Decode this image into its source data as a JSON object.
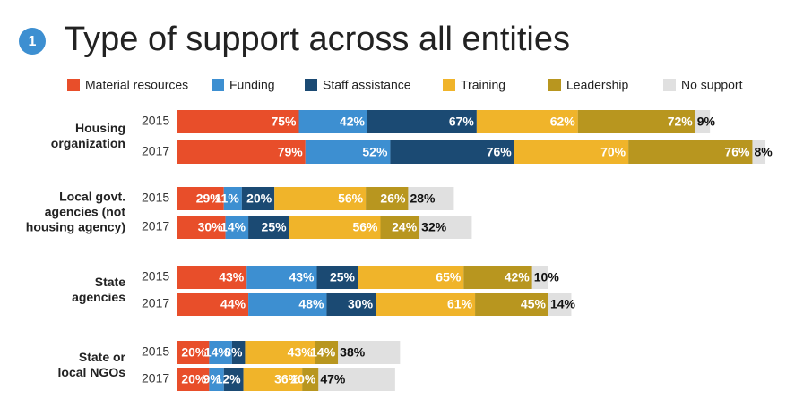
{
  "chart_data": {
    "type": "stacked-bar",
    "number": "1",
    "title": "Type of support across all entities",
    "groups": [
      {
        "label": [
          "Housing",
          "organization"
        ],
        "categories": [
          "2015",
          "2017"
        ]
      },
      {
        "label": [
          "Local govt.",
          "agencies (not",
          "housing agency)"
        ],
        "categories": [
          "2015",
          "2017"
        ]
      },
      {
        "label": [
          "State",
          "agencies"
        ],
        "categories": [
          "2015",
          "2017"
        ]
      },
      {
        "label": [
          "State or",
          "local NGOs"
        ],
        "categories": [
          "2015",
          "2017"
        ]
      }
    ],
    "series": [
      {
        "name": "Material resources",
        "color": "#e84e2a",
        "values": [
          75,
          79,
          29,
          30,
          43,
          44,
          20,
          20
        ],
        "value_labels": [
          "75%",
          "79%",
          "29%",
          "30%",
          "43%",
          "44%",
          "20%",
          "20%"
        ]
      },
      {
        "name": "Funding",
        "color": "#3d8fd1",
        "values": [
          42,
          52,
          11,
          14,
          43,
          48,
          14,
          9
        ],
        "value_labels": [
          "42%",
          "52%",
          "11%",
          "14%",
          "43%",
          "48%",
          "14%",
          "9%"
        ]
      },
      {
        "name": "Staff assistance",
        "color": "#1b4a73",
        "values": [
          67,
          76,
          20,
          25,
          25,
          30,
          8,
          12
        ],
        "value_labels": [
          "67%",
          "76%",
          "20%",
          "25%",
          "25%",
          "30%",
          "8%",
          "12%"
        ]
      },
      {
        "name": "Training",
        "color": "#f0b42a",
        "values": [
          62,
          70,
          56,
          56,
          65,
          61,
          43,
          36
        ],
        "value_labels": [
          "62%",
          "70%",
          "56%",
          "56%",
          "65%",
          "61%",
          "43%",
          "36%"
        ]
      },
      {
        "name": "Leadership",
        "color": "#b8961f",
        "values": [
          72,
          76,
          26,
          24,
          42,
          45,
          14,
          10
        ],
        "value_labels": [
          "72%",
          "76%",
          "26%",
          "24%",
          "42%",
          "45%",
          "14%",
          "10%"
        ]
      },
      {
        "name": "No support",
        "color": "#e0e0e0",
        "values": [
          9,
          8,
          28,
          32,
          10,
          14,
          38,
          47
        ],
        "value_labels": [
          "9%",
          "8%",
          "28%",
          "32%",
          "10%",
          "14%",
          "38%",
          "47%"
        ]
      }
    ]
  }
}
